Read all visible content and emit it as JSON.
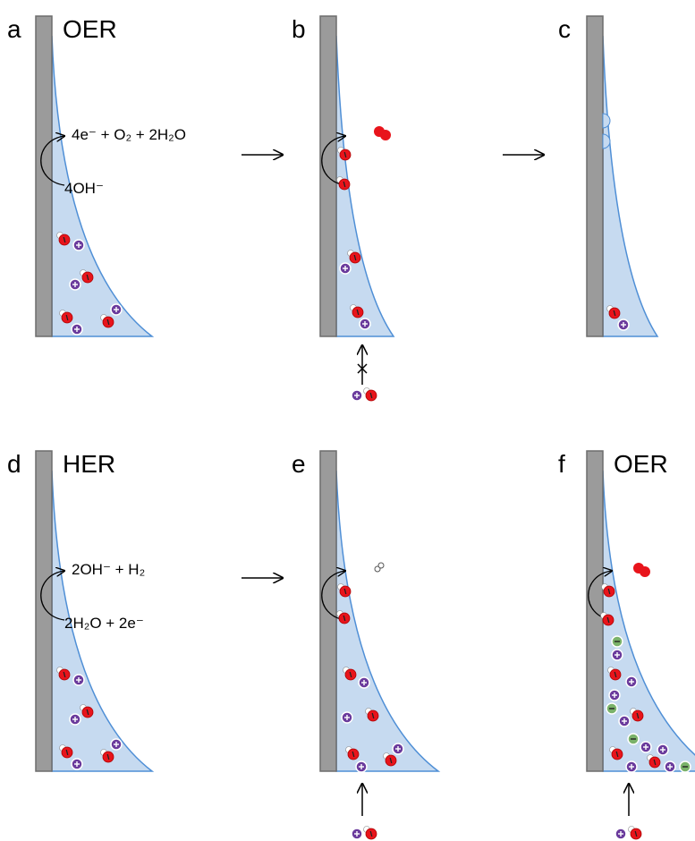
{
  "panels": [
    {
      "label": "a",
      "title": "OER"
    },
    {
      "label": "b"
    },
    {
      "label": "c"
    },
    {
      "label": "d",
      "title": "HER"
    },
    {
      "label": "e"
    },
    {
      "label": "f",
      "title": "OER"
    }
  ],
  "equations": {
    "oer_product": "4e⁻ + O₂ + 2H₂O",
    "oer_reactant": "4OH⁻",
    "her_product": "2OH⁻ + H₂",
    "her_reactant": "2H₂O + 2e⁻"
  }
}
